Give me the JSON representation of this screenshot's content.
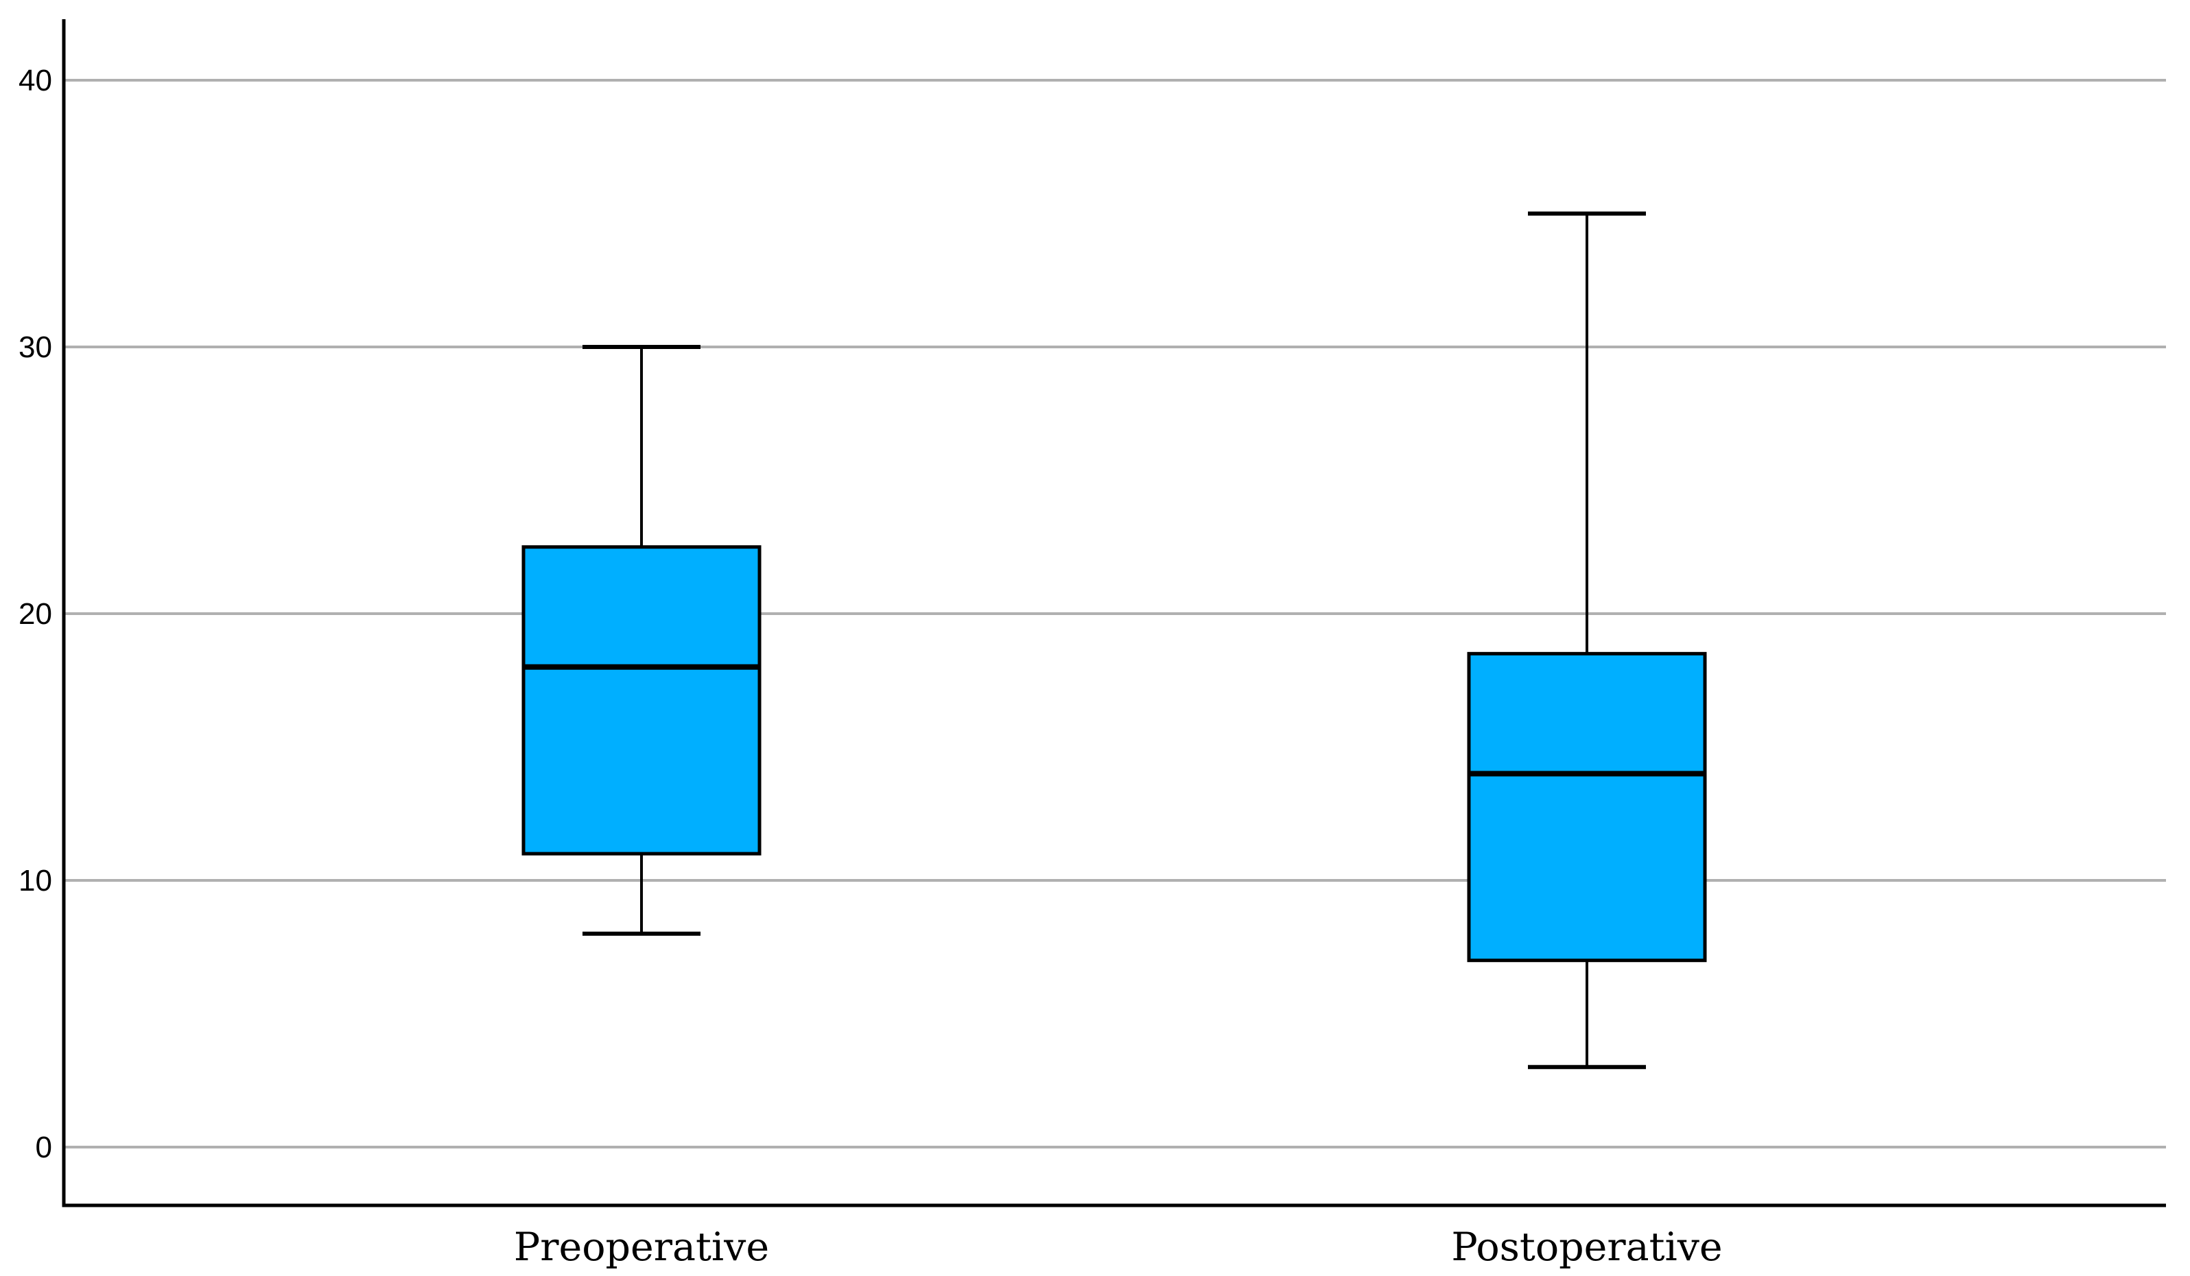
{
  "chart_data": {
    "type": "boxplot",
    "title": "",
    "xlabel": "",
    "ylabel": "",
    "categories": [
      "Preoperative",
      "Postoperative"
    ],
    "series": [
      {
        "name": "Preoperative",
        "whisker_low": 8,
        "q1": 11,
        "median": 18,
        "q3": 22.5,
        "whisker_high": 30
      },
      {
        "name": "Postoperative",
        "whisker_low": 3,
        "q1": 7,
        "median": 14,
        "q3": 18.5,
        "whisker_high": 35
      }
    ],
    "y_ticks": [
      0,
      10,
      20,
      30,
      40
    ],
    "ylim": [
      -2.2,
      42.3
    ],
    "grid": true,
    "legend": "none",
    "colors": {
      "box_fill": "#00AFFF",
      "box_stroke": "#000000",
      "median": "#000000",
      "whisker": "#000000",
      "gridline": "#B0B0B0",
      "axis": "#000000",
      "text": "#000000",
      "background": "#FFFFFF"
    }
  }
}
